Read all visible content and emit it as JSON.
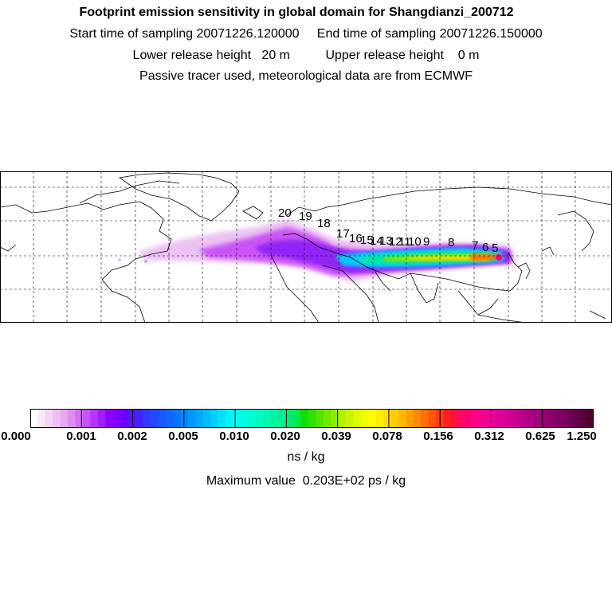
{
  "header": {
    "title": "Footprint emission sensitivity in global domain for Shangdianzi_200712",
    "line2": "Start time of sampling 20071226.120000     End time of sampling 20071226.150000",
    "line3": "Lower release height   20 m          Upper release height    0 m",
    "line4": "Passive tracer used, meteorological data are from ECMWF"
  },
  "map": {
    "trajectory_labels": [
      "20",
      "19",
      "18",
      "17",
      "16",
      "15",
      "14",
      "13",
      "12",
      "11",
      "10",
      "9",
      "8",
      "7",
      "6",
      "5"
    ],
    "colors": {
      "land_outline": "#000000",
      "grid": "#000000"
    }
  },
  "colorbar": {
    "tick_labels": [
      "0.000",
      "0.001",
      "0.002",
      "0.005",
      "0.010",
      "0.020",
      "0.039",
      "0.078",
      "0.156",
      "0.312",
      "0.625",
      "1.250"
    ],
    "colors": [
      "#ffffff",
      "#fbe8fb",
      "#f5d2f6",
      "#efbff3",
      "#e6a8f0",
      "#dd8ef0",
      "#d070f5",
      "#c352f8",
      "#b436fb",
      "#a21cfc",
      "#9000fd",
      "#7f00fe",
      "#6a00ff",
      "#5a14ff",
      "#4424ff",
      "#3338ff",
      "#2448ff",
      "#1a56ff",
      "#1064ff",
      "#0a74ff",
      "#0486ff",
      "#0098ff",
      "#00aaff",
      "#00bcff",
      "#00cfff",
      "#00e2ff",
      "#00f2ff",
      "#00fff0",
      "#00ffe0",
      "#00ffd0",
      "#00fcc0",
      "#00f8b0",
      "#00f4a0",
      "#00f090",
      "#00ec70",
      "#00e850",
      "#10e000",
      "#30e000",
      "#50e400",
      "#70e800",
      "#90ec00",
      "#b0f000",
      "#c8f400",
      "#e0f800",
      "#f0fc00",
      "#ffff00",
      "#ffee00",
      "#ffdd00",
      "#ffcc00",
      "#ffb800",
      "#ffa000",
      "#ff8800",
      "#ff6e00",
      "#ff5400",
      "#ff3a10",
      "#ff2020",
      "#ff1040",
      "#ff0860",
      "#ff0078",
      "#f80088",
      "#f00090",
      "#e80098",
      "#e00098",
      "#d40094",
      "#c80090",
      "#bc008a",
      "#b00084",
      "#a4007c",
      "#980074",
      "#8c006c",
      "#800064",
      "#74005c",
      "#68004c",
      "#5c0040",
      "#500030"
    ]
  },
  "unit": "ns / kg",
  "max_value": "Maximum value  0.203E+02 ps / kg"
}
